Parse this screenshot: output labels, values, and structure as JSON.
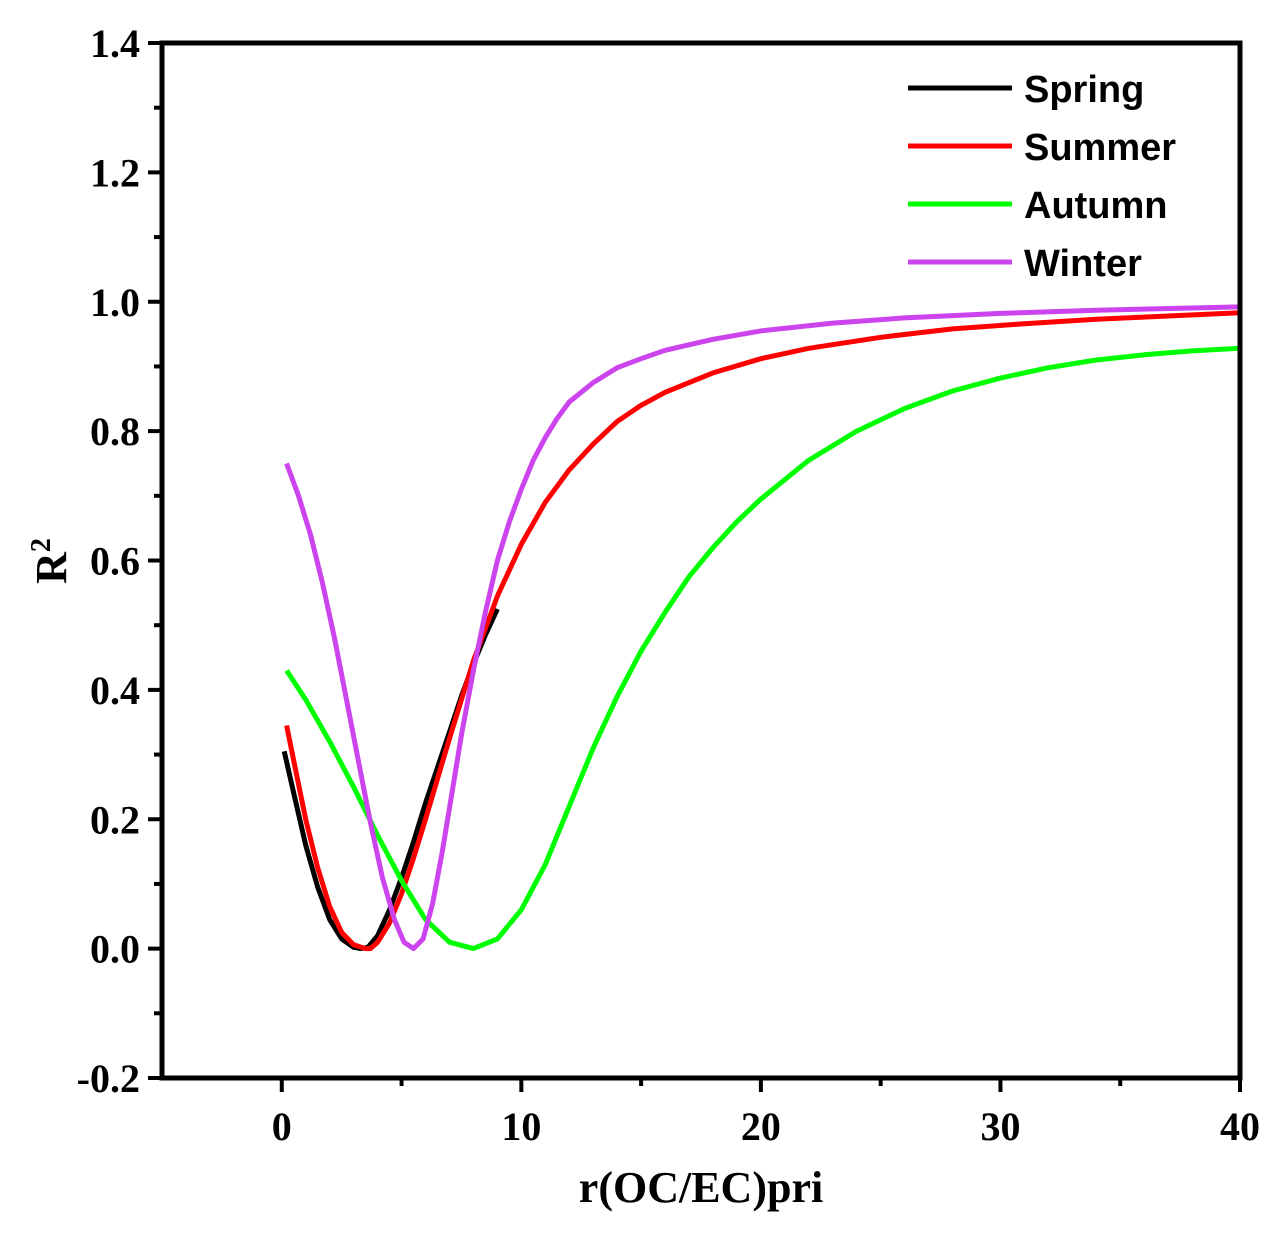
{
  "chart_data": {
    "type": "line",
    "title": "",
    "xlabel": "r(OC/EC)pri",
    "ylabel_base": "R",
    "ylabel_sup": "2",
    "xlim": [
      -5,
      40
    ],
    "ylim": [
      -0.2,
      1.4
    ],
    "xticks": [
      0,
      10,
      20,
      30,
      40
    ],
    "xtick_labels": [
      "0",
      "10",
      "20",
      "30",
      "40"
    ],
    "yticks": [
      -0.2,
      0.0,
      0.2,
      0.4,
      0.6,
      0.8,
      1.0,
      1.2,
      1.4
    ],
    "ytick_labels": [
      "-0.2",
      "0.0",
      "0.2",
      "0.4",
      "0.6",
      "0.8",
      "1.0",
      "1.2",
      "1.4"
    ],
    "grid": false,
    "legend_position": "top-right",
    "series": [
      {
        "name": "Spring",
        "color": "#000000",
        "x": [
          0.1,
          0.5,
          1.0,
          1.5,
          2.0,
          2.5,
          3.0,
          3.3,
          3.6,
          4.0,
          4.5,
          5.0,
          5.5,
          6.0,
          6.5,
          7.0,
          7.5,
          8.0,
          8.5,
          9.0
        ],
        "y": [
          0.305,
          0.24,
          0.16,
          0.095,
          0.045,
          0.015,
          0.002,
          0.0,
          0.002,
          0.02,
          0.06,
          0.11,
          0.165,
          0.225,
          0.28,
          0.335,
          0.39,
          0.44,
          0.485,
          0.525
        ]
      },
      {
        "name": "Summer",
        "color": "#ff0000",
        "x": [
          0.2,
          0.5,
          1.0,
          1.5,
          2.0,
          2.5,
          3.0,
          3.5,
          3.7,
          4.0,
          4.5,
          5.0,
          5.5,
          6.0,
          7.0,
          8.0,
          9.0,
          10.0,
          11.0,
          12.0,
          13.0,
          14.0,
          15.0,
          16.0,
          18.0,
          20.0,
          22.0,
          25.0,
          28.0,
          31.0,
          34.0,
          37.0,
          40.0
        ],
        "y": [
          0.345,
          0.29,
          0.2,
          0.125,
          0.065,
          0.025,
          0.006,
          0.0,
          0.0,
          0.01,
          0.04,
          0.085,
          0.14,
          0.2,
          0.325,
          0.445,
          0.545,
          0.625,
          0.69,
          0.74,
          0.78,
          0.815,
          0.84,
          0.86,
          0.89,
          0.912,
          0.928,
          0.945,
          0.958,
          0.966,
          0.973,
          0.978,
          0.983
        ]
      },
      {
        "name": "Autumn",
        "color": "#00ff00",
        "x": [
          0.2,
          1.0,
          2.0,
          3.0,
          4.0,
          5.0,
          6.0,
          7.0,
          8.0,
          9.0,
          10.0,
          11.0,
          12.0,
          13.0,
          14.0,
          15.0,
          16.0,
          17.0,
          18.0,
          19.0,
          20.0,
          22.0,
          24.0,
          26.0,
          28.0,
          30.0,
          32.0,
          34.0,
          36.0,
          38.0,
          40.0
        ],
        "y": [
          0.43,
          0.385,
          0.32,
          0.25,
          0.175,
          0.105,
          0.045,
          0.01,
          0.0,
          0.015,
          0.06,
          0.13,
          0.22,
          0.31,
          0.39,
          0.46,
          0.52,
          0.575,
          0.62,
          0.66,
          0.695,
          0.755,
          0.8,
          0.835,
          0.862,
          0.882,
          0.898,
          0.91,
          0.918,
          0.924,
          0.928
        ]
      },
      {
        "name": "Winter",
        "color": "#cc44ee",
        "x": [
          0.2,
          0.7,
          1.2,
          1.7,
          2.2,
          2.7,
          3.2,
          3.7,
          4.2,
          4.7,
          5.1,
          5.5,
          5.9,
          6.3,
          6.7,
          7.1,
          7.5,
          8.0,
          8.5,
          9.0,
          9.5,
          10.0,
          10.5,
          11.0,
          11.5,
          12.0,
          13.0,
          14.0,
          15.0,
          16.0,
          18.0,
          20.0,
          23.0,
          26.0,
          30.0,
          34.0,
          40.0
        ],
        "y": [
          0.75,
          0.7,
          0.64,
          0.565,
          0.48,
          0.385,
          0.29,
          0.195,
          0.11,
          0.045,
          0.01,
          0.0,
          0.015,
          0.07,
          0.15,
          0.24,
          0.33,
          0.43,
          0.52,
          0.6,
          0.66,
          0.71,
          0.755,
          0.79,
          0.82,
          0.845,
          0.875,
          0.898,
          0.912,
          0.925,
          0.942,
          0.955,
          0.967,
          0.975,
          0.982,
          0.987,
          0.992
        ]
      }
    ]
  }
}
